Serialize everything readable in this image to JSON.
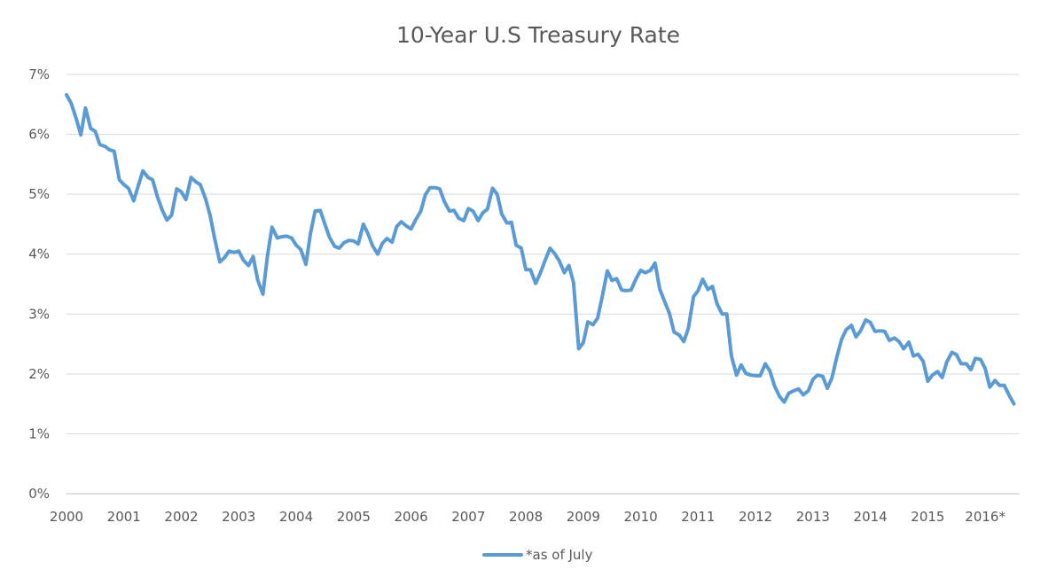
{
  "chart_data": {
    "type": "line",
    "title": "10-Year U.S Treasury Rate",
    "xlabel": "",
    "ylabel": "",
    "x_ticks": [
      "2000",
      "2001",
      "2002",
      "2003",
      "2004",
      "2005",
      "2006",
      "2007",
      "2008",
      "2009",
      "2010",
      "2011",
      "2012",
      "2013",
      "2014",
      "2015",
      "2016*"
    ],
    "y_ticks": [
      "0%",
      "1%",
      "2%",
      "3%",
      "4%",
      "5%",
      "6%",
      "7%"
    ],
    "xlim": [
      2000,
      2016.6
    ],
    "ylim": [
      0,
      7
    ],
    "grid": true,
    "legend": "bottom-center",
    "series": [
      {
        "name": "*as of July",
        "color": "#5b9bd5",
        "x": [
          2000.0,
          2000.08,
          2000.17,
          2000.25,
          2000.33,
          2000.42,
          2000.5,
          2000.58,
          2000.67,
          2000.75,
          2000.83,
          2000.92,
          2001.0,
          2001.08,
          2001.17,
          2001.25,
          2001.33,
          2001.42,
          2001.5,
          2001.58,
          2001.67,
          2001.75,
          2001.83,
          2001.92,
          2002.0,
          2002.08,
          2002.17,
          2002.25,
          2002.33,
          2002.42,
          2002.5,
          2002.58,
          2002.67,
          2002.75,
          2002.83,
          2002.92,
          2003.0,
          2003.08,
          2003.17,
          2003.25,
          2003.33,
          2003.42,
          2003.5,
          2003.58,
          2003.67,
          2003.75,
          2003.83,
          2003.92,
          2004.0,
          2004.08,
          2004.17,
          2004.25,
          2004.33,
          2004.42,
          2004.5,
          2004.58,
          2004.67,
          2004.75,
          2004.83,
          2004.92,
          2005.0,
          2005.08,
          2005.17,
          2005.25,
          2005.33,
          2005.42,
          2005.5,
          2005.58,
          2005.67,
          2005.75,
          2005.83,
          2005.92,
          2006.0,
          2006.08,
          2006.17,
          2006.25,
          2006.33,
          2006.42,
          2006.5,
          2006.58,
          2006.67,
          2006.75,
          2006.83,
          2006.92,
          2007.0,
          2007.08,
          2007.17,
          2007.25,
          2007.33,
          2007.42,
          2007.5,
          2007.58,
          2007.67,
          2007.75,
          2007.83,
          2007.92,
          2008.0,
          2008.08,
          2008.17,
          2008.25,
          2008.33,
          2008.42,
          2008.5,
          2008.58,
          2008.67,
          2008.75,
          2008.83,
          2008.92,
          2009.0,
          2009.08,
          2009.17,
          2009.25,
          2009.33,
          2009.42,
          2009.5,
          2009.58,
          2009.67,
          2009.75,
          2009.83,
          2009.92,
          2010.0,
          2010.08,
          2010.17,
          2010.25,
          2010.33,
          2010.42,
          2010.5,
          2010.58,
          2010.67,
          2010.75,
          2010.83,
          2010.92,
          2011.0,
          2011.08,
          2011.17,
          2011.25,
          2011.33,
          2011.42,
          2011.5,
          2011.58,
          2011.67,
          2011.75,
          2011.83,
          2011.92,
          2012.0,
          2012.08,
          2012.17,
          2012.25,
          2012.33,
          2012.42,
          2012.5,
          2012.58,
          2012.67,
          2012.75,
          2012.83,
          2012.92,
          2013.0,
          2013.08,
          2013.17,
          2013.25,
          2013.33,
          2013.42,
          2013.5,
          2013.58,
          2013.67,
          2013.75,
          2013.83,
          2013.92,
          2014.0,
          2014.08,
          2014.17,
          2014.25,
          2014.33,
          2014.42,
          2014.5,
          2014.58,
          2014.67,
          2014.75,
          2014.83,
          2014.92,
          2015.0,
          2015.08,
          2015.17,
          2015.25,
          2015.33,
          2015.42,
          2015.5,
          2015.58,
          2015.67,
          2015.75,
          2015.83,
          2015.92,
          2016.0,
          2016.08,
          2016.17,
          2016.25,
          2016.33,
          2016.42,
          2016.5
        ],
        "values": [
          6.66,
          6.52,
          6.26,
          5.99,
          6.44,
          6.1,
          6.05,
          5.83,
          5.8,
          5.74,
          5.72,
          5.24,
          5.16,
          5.1,
          4.89,
          5.14,
          5.39,
          5.28,
          5.24,
          4.97,
          4.73,
          4.57,
          4.65,
          5.09,
          5.04,
          4.91,
          5.28,
          5.21,
          5.16,
          4.93,
          4.65,
          4.26,
          3.87,
          3.94,
          4.05,
          4.03,
          4.05,
          3.9,
          3.81,
          3.96,
          3.57,
          3.33,
          3.98,
          4.45,
          4.27,
          4.29,
          4.3,
          4.27,
          4.15,
          4.08,
          3.83,
          4.35,
          4.72,
          4.73,
          4.5,
          4.28,
          4.13,
          4.1,
          4.19,
          4.23,
          4.22,
          4.17,
          4.5,
          4.34,
          4.14,
          4.0,
          4.18,
          4.26,
          4.2,
          4.46,
          4.54,
          4.47,
          4.42,
          4.57,
          4.72,
          4.99,
          5.11,
          5.11,
          5.09,
          4.88,
          4.72,
          4.73,
          4.6,
          4.56,
          4.76,
          4.72,
          4.56,
          4.69,
          4.75,
          5.1,
          5.0,
          4.67,
          4.52,
          4.53,
          4.15,
          4.1,
          3.74,
          3.74,
          3.51,
          3.68,
          3.88,
          4.1,
          4.01,
          3.89,
          3.69,
          3.81,
          3.53,
          2.42,
          2.52,
          2.87,
          2.82,
          2.93,
          3.29,
          3.72,
          3.56,
          3.59,
          3.4,
          3.39,
          3.4,
          3.59,
          3.73,
          3.69,
          3.73,
          3.85,
          3.42,
          3.2,
          3.01,
          2.7,
          2.65,
          2.54,
          2.76,
          3.29,
          3.39,
          3.58,
          3.41,
          3.46,
          3.17,
          3.0,
          3.0,
          2.3,
          1.98,
          2.15,
          2.01,
          1.98,
          1.97,
          1.97,
          2.17,
          2.05,
          1.8,
          1.62,
          1.53,
          1.68,
          1.72,
          1.75,
          1.65,
          1.72,
          1.91,
          1.98,
          1.96,
          1.76,
          1.93,
          2.3,
          2.58,
          2.74,
          2.81,
          2.62,
          2.72,
          2.9,
          2.86,
          2.71,
          2.72,
          2.71,
          2.56,
          2.6,
          2.54,
          2.42,
          2.53,
          2.3,
          2.33,
          2.21,
          1.88,
          1.98,
          2.04,
          1.94,
          2.2,
          2.36,
          2.32,
          2.17,
          2.17,
          2.07,
          2.26,
          2.24,
          2.09,
          1.78,
          1.89,
          1.81,
          1.81,
          1.64,
          1.5
        ]
      }
    ]
  }
}
